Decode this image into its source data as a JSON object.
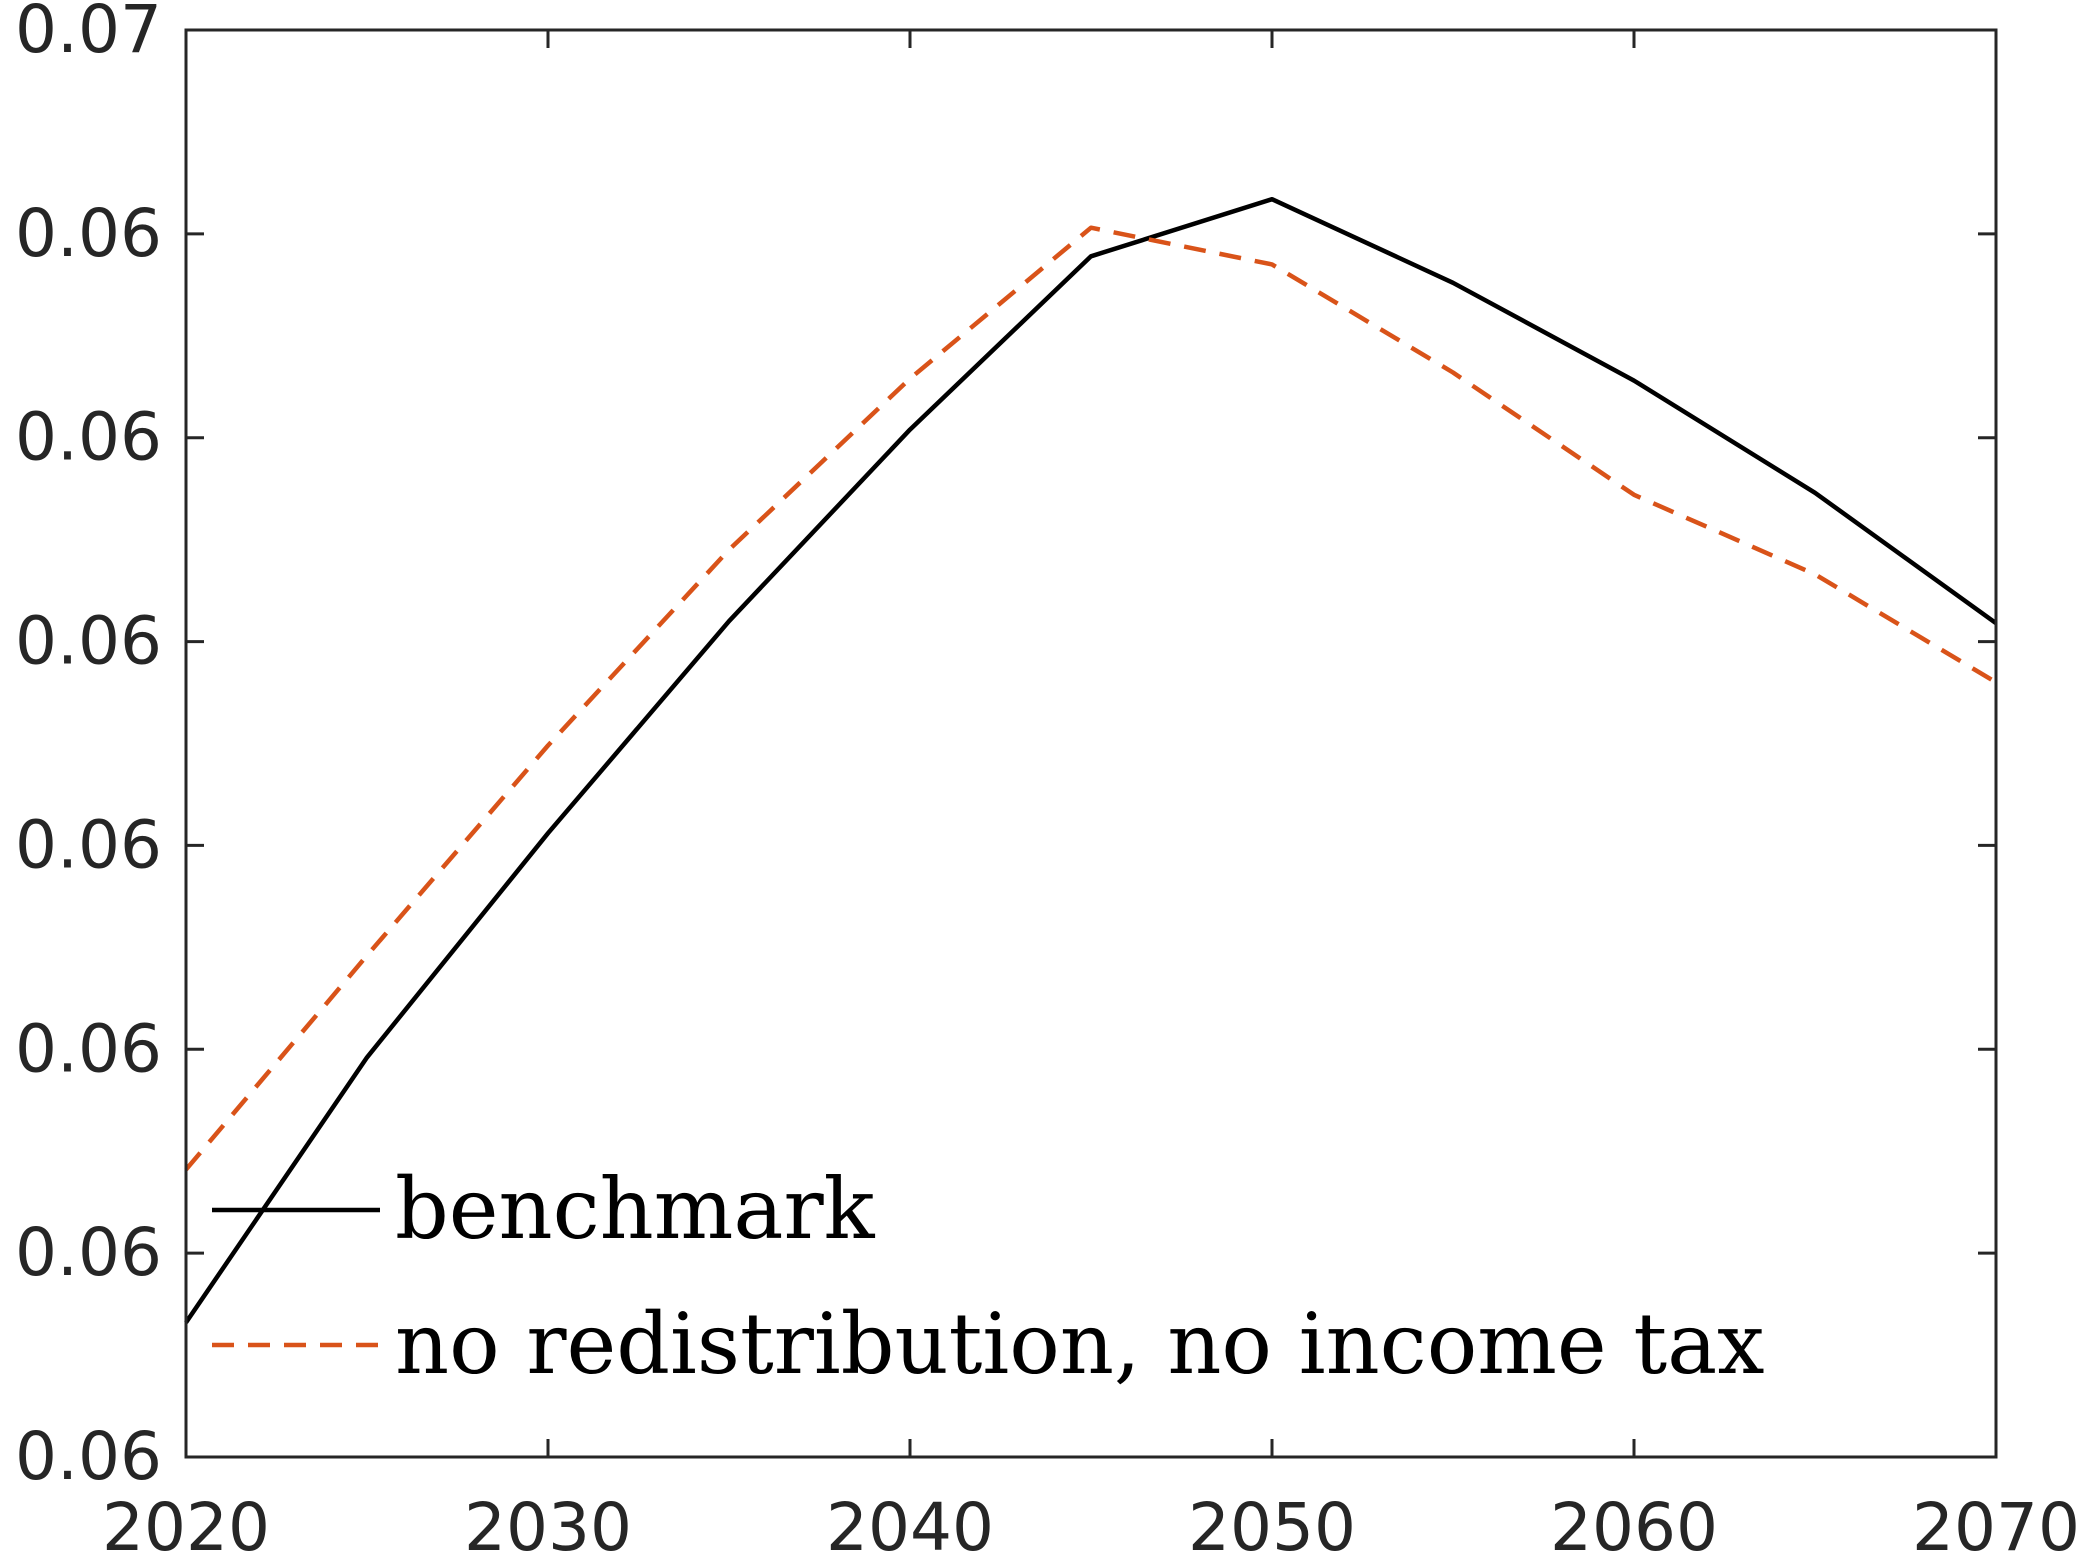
{
  "chart_data": {
    "type": "line",
    "title": "",
    "xlabel": "",
    "ylabel": "",
    "xlim": [
      2020,
      2070
    ],
    "ylim": [
      0.0595,
      0.0665
    ],
    "grid": false,
    "legend_position": "bottom-left",
    "x_ticks": [
      {
        "value": 2020,
        "label": "2020"
      },
      {
        "value": 2030,
        "label": "2030"
      },
      {
        "value": 2040,
        "label": "2040"
      },
      {
        "value": 2050,
        "label": "2050"
      },
      {
        "value": 2060,
        "label": "2060"
      },
      {
        "value": 2070,
        "label": "2070"
      }
    ],
    "y_ticks": [
      {
        "value": 0.0595,
        "label": "0.06"
      },
      {
        "value": 0.0605,
        "label": "0.06"
      },
      {
        "value": 0.0615,
        "label": "0.06"
      },
      {
        "value": 0.0625,
        "label": "0.06"
      },
      {
        "value": 0.0635,
        "label": "0.06"
      },
      {
        "value": 0.0645,
        "label": "0.06"
      },
      {
        "value": 0.0655,
        "label": "0.06"
      },
      {
        "value": 0.0665,
        "label": "0.07"
      }
    ],
    "x": [
      2020,
      2025,
      2030,
      2035,
      2040,
      2045,
      2050,
      2055,
      2060,
      2065,
      2070
    ],
    "series": [
      {
        "name": "benchmark",
        "color": "#000000",
        "style": "solid",
        "values": [
          0.06016,
          0.06146,
          0.06256,
          0.0636,
          0.06454,
          0.06539,
          0.06567,
          0.06526,
          0.06478,
          0.06423,
          0.06359
        ]
      },
      {
        "name": "no redistribution, no income tax",
        "color": "#D95319",
        "style": "dashed",
        "values": [
          0.06091,
          0.06196,
          0.06299,
          0.06395,
          0.06479,
          0.06553,
          0.06535,
          0.06482,
          0.06422,
          0.06383,
          0.0633
        ]
      }
    ]
  }
}
